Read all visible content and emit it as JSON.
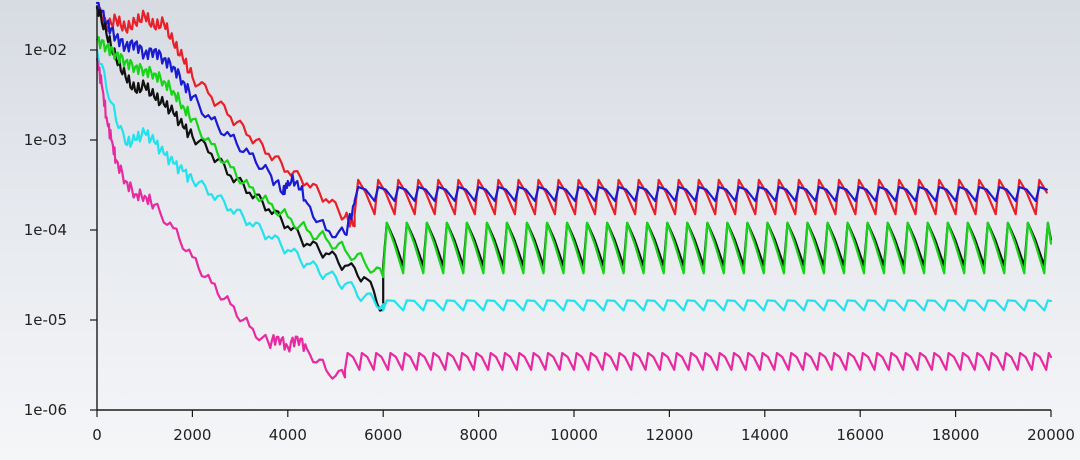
{
  "chart_data": {
    "type": "line",
    "title": "",
    "xlabel": "",
    "ylabel": "",
    "y_scale": "log",
    "xlim": [
      0,
      20000
    ],
    "ylim": [
      1e-06,
      0.04
    ],
    "grid": false,
    "legend": "none",
    "x_ticks": [
      0,
      2000,
      4000,
      6000,
      8000,
      10000,
      12000,
      14000,
      16000,
      18000,
      20000
    ],
    "x_tick_labels": [
      "0",
      "2000",
      "4000",
      "6000",
      "8000",
      "10000",
      "12000",
      "14000",
      "16000",
      "18000",
      "20000"
    ],
    "y_ticks": [
      1e-06,
      1e-05,
      0.0001,
      0.001,
      0.01
    ],
    "y_tick_labels": [
      "1e-06",
      "1e-05",
      "1e-04",
      "1e-03",
      "1e-02"
    ],
    "series": [
      {
        "color": "#e8202a",
        "x": [
          0,
          200,
          400,
          600,
          800,
          1000,
          1200,
          1400,
          1600,
          1800,
          2000,
          2400,
          2800,
          3200,
          3600,
          4000,
          4400,
          4800,
          5200,
          5400
        ],
        "y": [
          0.03,
          0.018,
          0.022,
          0.017,
          0.02,
          0.024,
          0.018,
          0.02,
          0.012,
          0.008,
          0.005,
          0.003,
          0.0018,
          0.0011,
          0.0007,
          0.00045,
          0.00033,
          0.00022,
          0.00014,
          0.00011
        ],
        "osc": {
          "start": 5400,
          "end": 20000,
          "period": 420,
          "high": 0.00036,
          "low": 0.00015
        }
      },
      {
        "color": "#1a1ad0",
        "x": [
          0,
          200,
          400,
          600,
          800,
          1000,
          1200,
          1400,
          1600,
          1800,
          2000,
          2400,
          2800,
          3200,
          3600,
          3900,
          4000,
          4200,
          4400,
          4800,
          5200,
          5400
        ],
        "y": [
          0.035,
          0.02,
          0.014,
          0.011,
          0.012,
          0.009,
          0.01,
          0.008,
          0.0065,
          0.0045,
          0.003,
          0.0017,
          0.0011,
          0.0007,
          0.00045,
          0.00025,
          0.00035,
          0.00035,
          0.0002,
          0.0001,
          9e-05,
          0.0002
        ],
        "osc": {
          "start": 5400,
          "end": 20000,
          "period": 420,
          "high": 0.0003,
          "low": 0.00021
        }
      },
      {
        "color": "#111111",
        "x": [
          0,
          200,
          400,
          600,
          800,
          1000,
          1200,
          1400,
          1600,
          1800,
          2000,
          2400,
          2800,
          3200,
          3600,
          4000,
          4400,
          4800,
          5200,
          5600,
          6000
        ],
        "y": [
          0.03,
          0.015,
          0.008,
          0.005,
          0.0035,
          0.004,
          0.003,
          0.0025,
          0.002,
          0.0014,
          0.0011,
          0.0007,
          0.0004,
          0.00026,
          0.00017,
          0.00011,
          7e-05,
          5.5e-05,
          4e-05,
          3e-05,
          1.3e-05
        ],
        "osc": {
          "start": 6000,
          "end": 20000,
          "period": 420,
          "high": 0.00012,
          "low": 4e-05
        }
      },
      {
        "color": "#18d418",
        "x": [
          0,
          200,
          400,
          600,
          800,
          1000,
          1200,
          1400,
          1600,
          1800,
          2000,
          2400,
          2800,
          3200,
          3600,
          4000,
          4400,
          4800,
          5200,
          5600,
          6000
        ],
        "y": [
          0.013,
          0.011,
          0.009,
          0.0075,
          0.0065,
          0.006,
          0.0055,
          0.0045,
          0.0035,
          0.0024,
          0.0017,
          0.0009,
          0.0005,
          0.0003,
          0.0002,
          0.00014,
          0.0001,
          8e-05,
          6e-05,
          4.5e-05,
          3e-05
        ],
        "osc": {
          "start": 6000,
          "end": 20000,
          "period": 420,
          "high": 0.00012,
          "low": 3.3e-05
        }
      },
      {
        "color": "#22e2ee",
        "x": [
          0,
          300,
          600,
          800,
          1000,
          1200,
          1400,
          1600,
          1800,
          2000,
          2400,
          2800,
          3200,
          3600,
          4000,
          4400,
          4800,
          5200,
          5600,
          6000
        ],
        "y": [
          0.01,
          0.0026,
          0.0009,
          0.001,
          0.0012,
          0.00095,
          0.0007,
          0.00055,
          0.00045,
          0.00036,
          0.00025,
          0.00017,
          0.00012,
          8.5e-05,
          6e-05,
          4.2e-05,
          3.2e-05,
          2.5e-05,
          1.8e-05,
          1.5e-05
        ],
        "osc": {
          "start": 6000,
          "end": 20000,
          "period": 420,
          "high": 1.65e-05,
          "low": 1.28e-05
        }
      },
      {
        "color": "#e82aa2",
        "x": [
          0,
          100,
          200,
          300,
          400,
          600,
          800,
          1000,
          1200,
          1600,
          2000,
          2400,
          2800,
          3200,
          3600,
          3800,
          4000,
          4200,
          4400,
          4800,
          5200
        ],
        "y": [
          0.008,
          0.004,
          0.0018,
          0.001,
          0.0006,
          0.00035,
          0.00025,
          0.00024,
          0.00019,
          0.000105,
          5e-05,
          2.6e-05,
          1.5e-05,
          8.5e-06,
          5.5e-06,
          6.5e-06,
          5e-06,
          6.5e-06,
          4.8e-06,
          2.8e-06,
          2.3e-06
        ],
        "osc": {
          "start": 5200,
          "end": 20000,
          "period": 300,
          "high": 4.3e-06,
          "low": 2.8e-06
        }
      }
    ]
  }
}
